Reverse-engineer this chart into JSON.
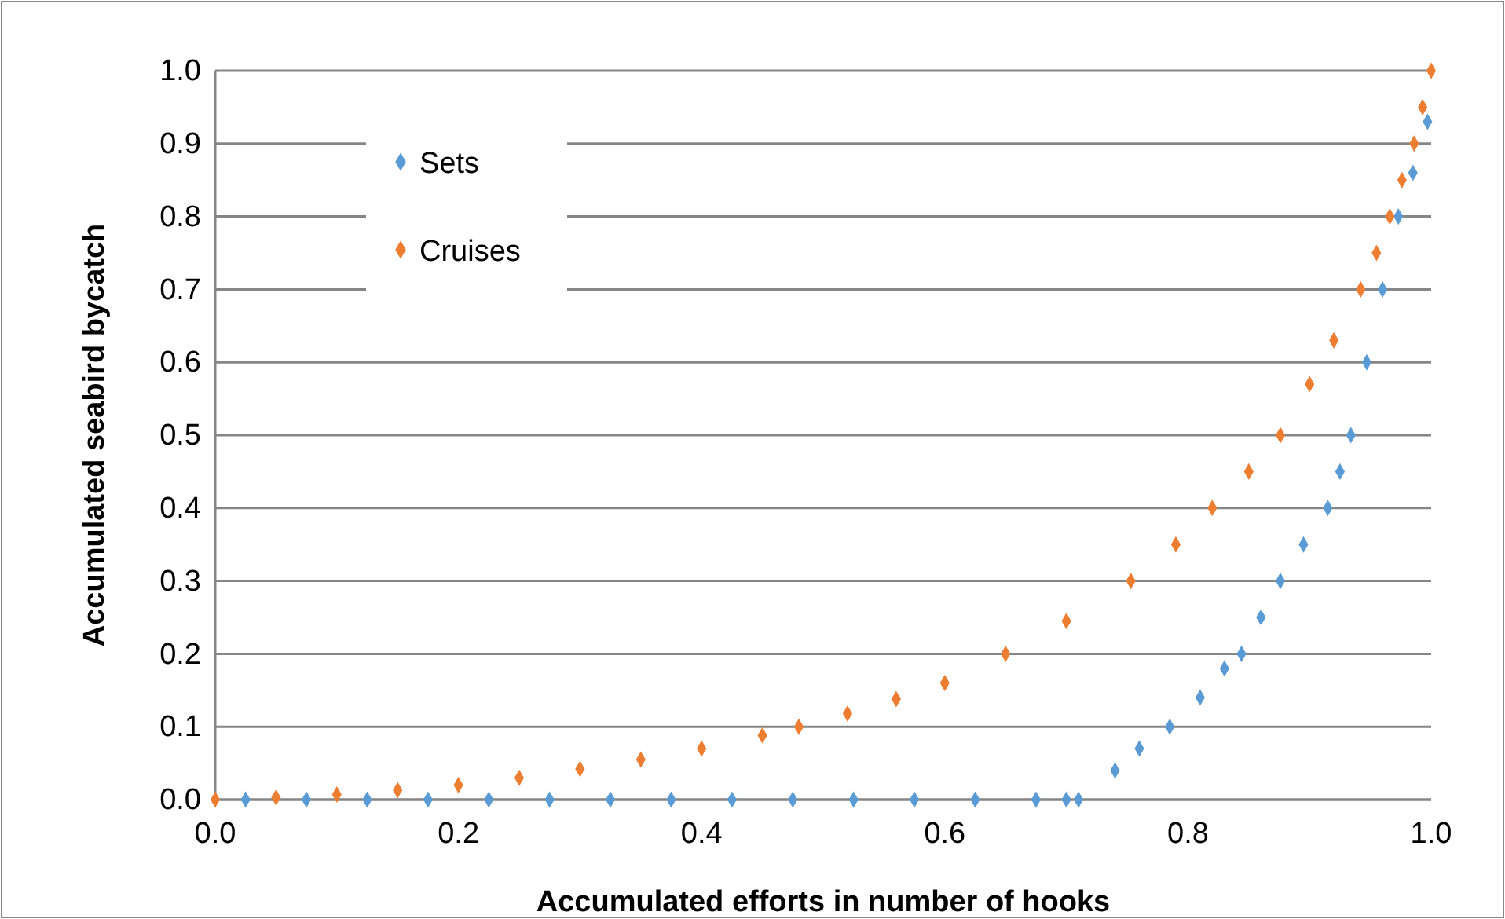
{
  "chart_data": {
    "type": "scatter",
    "xlabel": "Accumulated efforts in number of hooks",
    "ylabel": "Accumulated seabird bycatch",
    "xlim": [
      0,
      1
    ],
    "xticks": [
      {
        "value": 0,
        "label": "0.0"
      },
      {
        "value": 0.2,
        "label": "0.2"
      },
      {
        "value": 0.4,
        "label": "0.4"
      },
      {
        "value": 0.6,
        "label": "0.6"
      },
      {
        "value": 0.8,
        "label": "0.8"
      },
      {
        "value": 1,
        "label": "1.0"
      }
    ],
    "ylim": [
      0,
      1
    ],
    "yticks": [
      {
        "value": 0,
        "label": "0.0"
      },
      {
        "value": 0.1,
        "label": "0.1"
      },
      {
        "value": 0.2,
        "label": "0.2"
      },
      {
        "value": 0.3,
        "label": "0.3"
      },
      {
        "value": 0.4,
        "label": "0.4"
      },
      {
        "value": 0.5,
        "label": "0.5"
      },
      {
        "value": 0.6,
        "label": "0.6"
      },
      {
        "value": 0.7,
        "label": "0.7"
      },
      {
        "value": 0.8,
        "label": "0.8"
      },
      {
        "value": 0.9,
        "label": "0.9"
      },
      {
        "value": 1,
        "label": "1.0"
      }
    ],
    "grid": "y",
    "legend": "top left",
    "marker": "diamond",
    "series": [
      {
        "name": "Sets",
        "color": "#5b9bd5",
        "x": [
          0.025,
          0.075,
          0.125,
          0.175,
          0.225,
          0.275,
          0.325,
          0.375,
          0.425,
          0.475,
          0.525,
          0.575,
          0.625,
          0.675,
          0.7,
          0.71,
          0.74,
          0.76,
          0.785,
          0.81,
          0.83,
          0.844,
          0.86,
          0.876,
          0.895,
          0.915,
          0.925,
          0.934,
          0.947,
          0.96,
          0.973,
          0.985,
          0.997
        ],
        "values": [
          0,
          0,
          0,
          0,
          0,
          0,
          0,
          0,
          0,
          0,
          0,
          0,
          0,
          0,
          0,
          0,
          0.04,
          0.07,
          0.1,
          0.14,
          0.18,
          0.2,
          0.25,
          0.3,
          0.35,
          0.4,
          0.45,
          0.5,
          0.6,
          0.7,
          0.8,
          0.86,
          0.93
        ]
      },
      {
        "name": "Cruises",
        "color": "#ed7d31",
        "x": [
          0,
          0.05,
          0.1,
          0.15,
          0.2,
          0.25,
          0.3,
          0.35,
          0.4,
          0.45,
          0.48,
          0.52,
          0.56,
          0.6,
          0.65,
          0.7,
          0.753,
          0.79,
          0.82,
          0.85,
          0.876,
          0.9,
          0.92,
          0.942,
          0.955,
          0.966,
          0.976,
          0.986,
          0.993,
          1.0
        ],
        "values": [
          0,
          0.003,
          0.007,
          0.013,
          0.02,
          0.03,
          0.042,
          0.055,
          0.07,
          0.088,
          0.1,
          0.118,
          0.138,
          0.16,
          0.2,
          0.245,
          0.3,
          0.35,
          0.4,
          0.45,
          0.5,
          0.57,
          0.63,
          0.7,
          0.75,
          0.8,
          0.85,
          0.9,
          0.95,
          1.0
        ]
      }
    ]
  }
}
